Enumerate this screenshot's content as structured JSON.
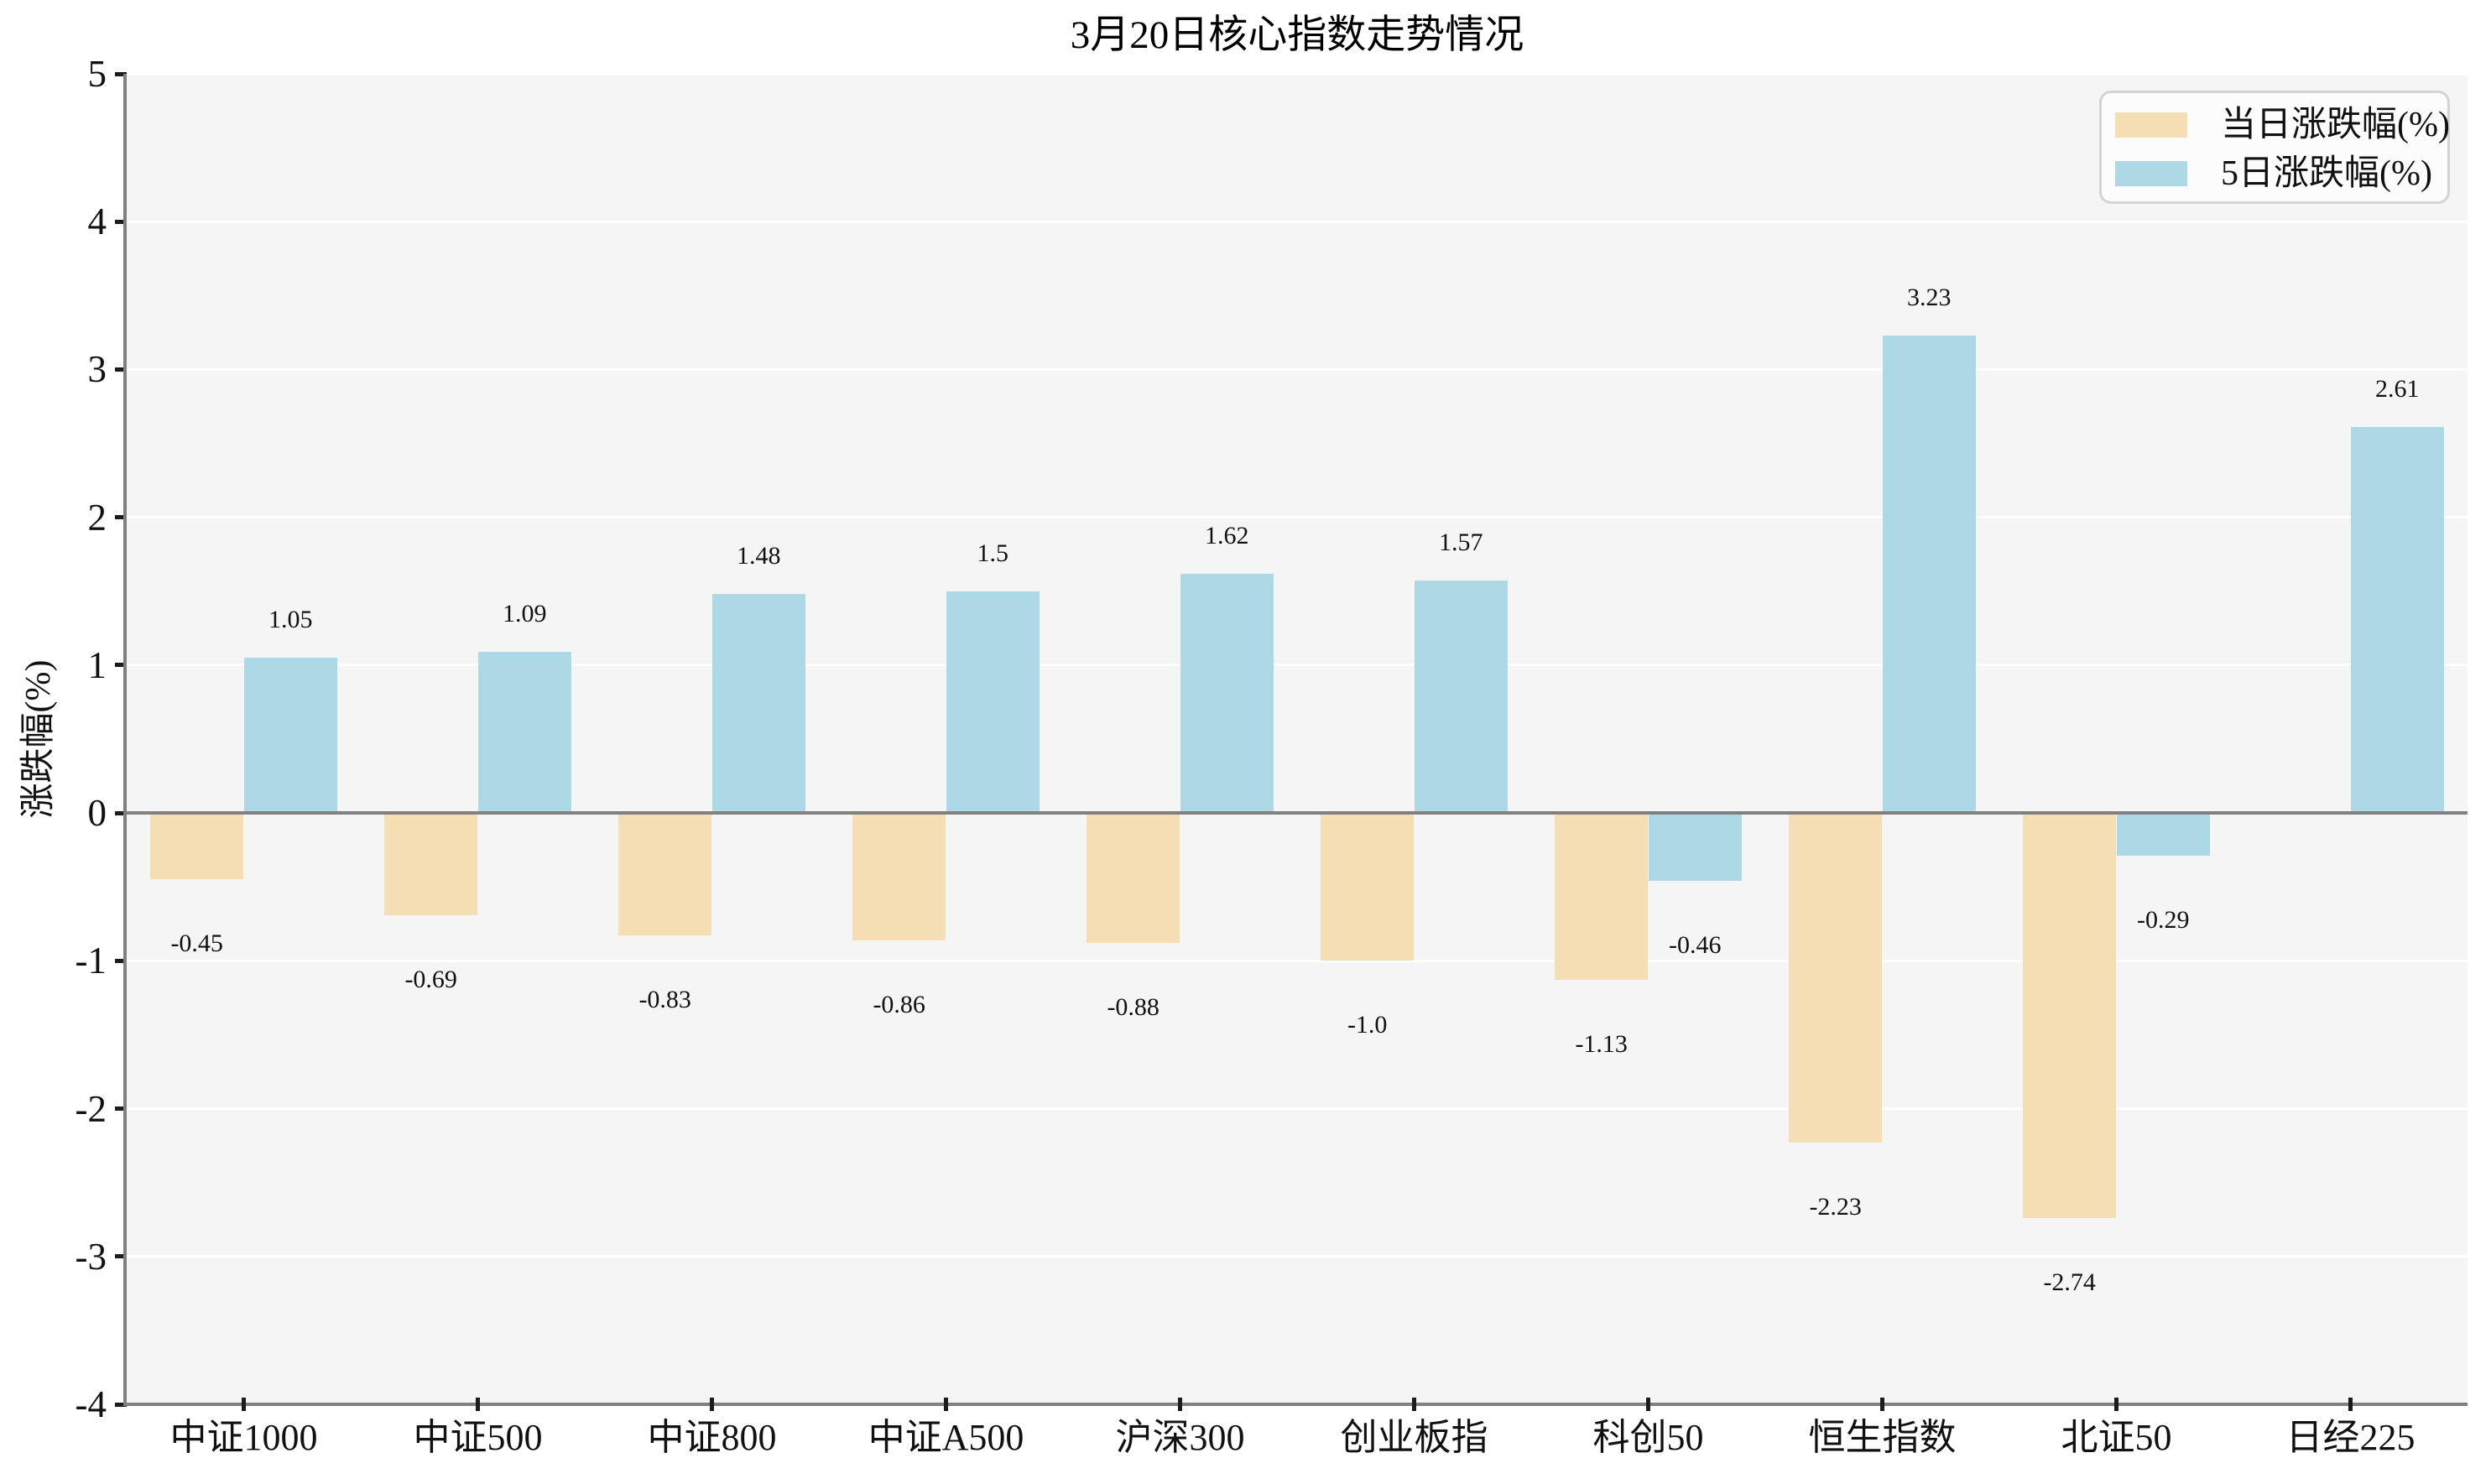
{
  "chart_data": {
    "type": "bar",
    "title": "3月20日核心指数走势情况",
    "xlabel": "",
    "ylabel": "涨跌幅(%)",
    "categories": [
      "中证1000",
      "中证500",
      "中证800",
      "中证A500",
      "沪深300",
      "创业板指",
      "科创50",
      "恒生指数",
      "北证50",
      "日经225"
    ],
    "series": [
      {
        "name": "当日涨跌幅(%)",
        "color": "#F5DEB3",
        "values": [
          -0.45,
          -0.69,
          -0.83,
          -0.86,
          -0.88,
          -1.0,
          -1.13,
          -2.23,
          -2.74,
          null
        ],
        "labels": [
          "-0.45",
          "-0.69",
          "-0.83",
          "-0.86",
          "-0.88",
          "-1.0",
          "-1.13",
          "-2.23",
          "-2.74",
          ""
        ]
      },
      {
        "name": "5日涨跌幅(%)",
        "color": "#ADD8E6",
        "values": [
          1.05,
          1.09,
          1.48,
          1.5,
          1.62,
          1.57,
          -0.46,
          3.23,
          -0.29,
          2.61
        ],
        "labels": [
          "1.05",
          "1.09",
          "1.48",
          "1.5",
          "1.62",
          "1.57",
          "-0.46",
          "3.23",
          "-0.29",
          "2.61"
        ]
      }
    ],
    "yticks": [
      5,
      4,
      3,
      2,
      1,
      0,
      -1,
      -2,
      -3,
      -4
    ],
    "ylim": [
      -4,
      5
    ],
    "grid": true,
    "legend_position": "upper right",
    "plot_bg_color": "#f5f5f5",
    "grid_color": "#ffffff",
    "axis_color": "#808080"
  }
}
